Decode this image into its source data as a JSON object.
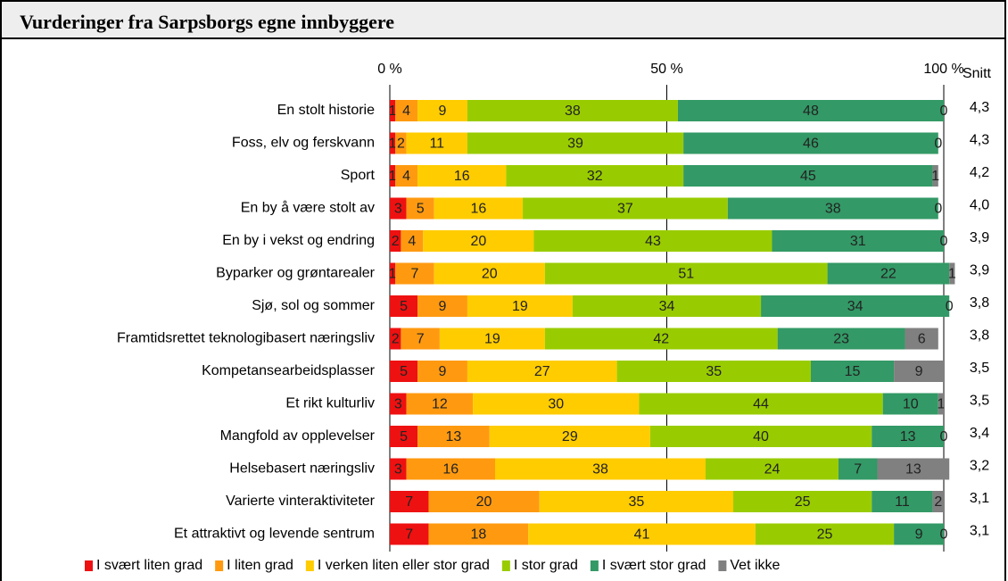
{
  "chart_data": {
    "type": "stacked-bar",
    "title": "Vurderinger fra Sarpsborgs egne innbyggere",
    "categories": [
      "En stolt historie",
      "Foss, elv og ferskvann",
      "Sport",
      "En by å være stolt av",
      "En by i vekst og endring",
      "Byparker og grøntarealer",
      "Sjø, sol og sommer",
      "Framtidsrettet teknologibasert næringsliv",
      "Kompetansearbeidsplasser",
      "Et rikt kulturliv",
      "Mangfold av opplevelser",
      "Helsebasert næringsliv",
      "Varierte vinteraktiviteter",
      "Et attraktivt og levende sentrum"
    ],
    "series": [
      {
        "name": "I svært liten grad",
        "color": "#ee1111",
        "values": [
          1,
          1,
          1,
          3,
          2,
          1,
          5,
          2,
          5,
          3,
          5,
          3,
          7,
          7
        ]
      },
      {
        "name": "I liten grad",
        "color": "#ff9a10",
        "values": [
          4,
          2,
          4,
          5,
          4,
          7,
          9,
          7,
          9,
          12,
          13,
          16,
          20,
          18
        ]
      },
      {
        "name": "I verken liten eller stor grad",
        "color": "#ffcc00",
        "values": [
          9,
          11,
          16,
          16,
          20,
          20,
          19,
          19,
          27,
          30,
          29,
          38,
          35,
          41
        ]
      },
      {
        "name": "I stor grad",
        "color": "#99cc00",
        "values": [
          38,
          39,
          32,
          37,
          43,
          51,
          34,
          42,
          35,
          44,
          40,
          24,
          25,
          25
        ]
      },
      {
        "name": "I svært stor grad",
        "color": "#339966",
        "values": [
          48,
          46,
          45,
          38,
          31,
          22,
          34,
          23,
          15,
          10,
          13,
          7,
          11,
          9
        ]
      },
      {
        "name": "Vet ikke",
        "color": "#808080",
        "values": [
          0,
          0,
          1,
          0,
          0,
          1,
          0,
          6,
          9,
          1,
          0,
          13,
          2,
          0
        ]
      }
    ],
    "xlim": [
      0,
      100
    ],
    "xticks": [
      {
        "value": 0,
        "label": "0 %"
      },
      {
        "value": 50,
        "label": "50 %"
      },
      {
        "value": 100,
        "label": "100 %"
      }
    ],
    "average": {
      "label": "Snitt",
      "values": [
        4.3,
        4.3,
        4.2,
        4.0,
        3.9,
        3.9,
        3.8,
        3.8,
        3.5,
        3.5,
        3.4,
        3.2,
        3.1,
        3.1
      ],
      "value_labels": [
        "4,3",
        "4,3",
        "4,2",
        "4,0",
        "3,9",
        "3,9",
        "3,8",
        "3,8",
        "3,5",
        "3,5",
        "3,4",
        "3,2",
        "3,1",
        "3,1"
      ]
    }
  }
}
